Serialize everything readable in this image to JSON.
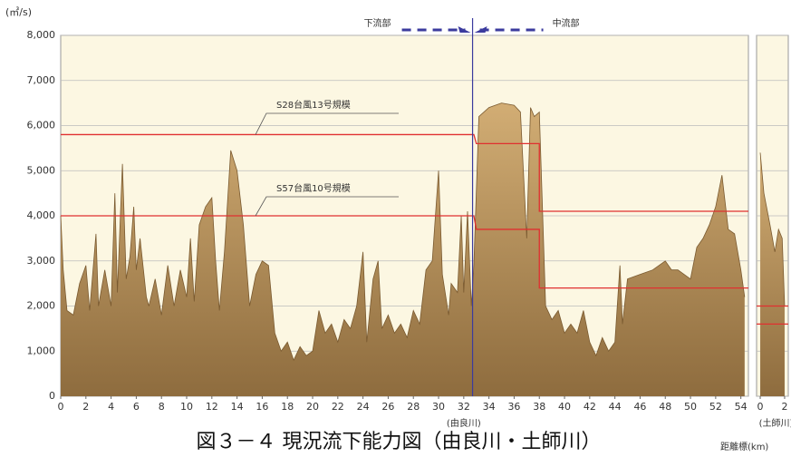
{
  "caption": "図３－４ 現況流下能力図（由良川・土師川）",
  "distance_label": "距離標(km)",
  "chart_data": [
    {
      "type": "area",
      "y_label": "(㎥/s)",
      "x_label": "(由良川)",
      "color": "#a8844c",
      "x": [
        0,
        0.2,
        0.5,
        1,
        1.5,
        2,
        2.3,
        2.8,
        3,
        3.5,
        4,
        4.3,
        4.5,
        4.9,
        5.2,
        5.5,
        5.8,
        6,
        6.3,
        6.8,
        7,
        7.5,
        8,
        8.5,
        9,
        9.5,
        10,
        10.3,
        10.6,
        11,
        11.5,
        12,
        12.3,
        12.6,
        13,
        13.5,
        14,
        14.5,
        15,
        15.5,
        16,
        16.5,
        17,
        17.5,
        18,
        18.5,
        19,
        19.5,
        20,
        20.5,
        21,
        21.5,
        22,
        22.5,
        23,
        23.5,
        24,
        24.3,
        24.8,
        25.2,
        25.5,
        26,
        26.5,
        27,
        27.5,
        28,
        28.5,
        29,
        29.5,
        30,
        30.3,
        30.8,
        31,
        31.5,
        31.8,
        32,
        32.3,
        32.6,
        32.8,
        33.2,
        34,
        35,
        36,
        36.5,
        37,
        37.3,
        37.6,
        38,
        38.5,
        39,
        39.5,
        40,
        40.5,
        41,
        41.5,
        42,
        42.5,
        43,
        43.5,
        44,
        44.4,
        44.6,
        45,
        46,
        47,
        48,
        48.5,
        49,
        50,
        50.5,
        51,
        51.5,
        52,
        52.5,
        53,
        53.5,
        54,
        54.3
      ],
      "values": [
        4000,
        2800,
        1900,
        1800,
        2500,
        2900,
        1900,
        3600,
        2000,
        2800,
        2000,
        4500,
        2300,
        5150,
        2600,
        3100,
        4200,
        2800,
        3500,
        2200,
        2000,
        2600,
        1800,
        2900,
        2000,
        2800,
        2200,
        3500,
        2100,
        3800,
        4200,
        4400,
        3000,
        1900,
        3200,
        5450,
        5000,
        3800,
        2000,
        2700,
        3000,
        2900,
        1400,
        1000,
        1200,
        800,
        1100,
        900,
        1000,
        1900,
        1400,
        1600,
        1200,
        1700,
        1500,
        2000,
        3200,
        1200,
        2600,
        3000,
        1500,
        1800,
        1400,
        1600,
        1300,
        1900,
        1600,
        2800,
        3000,
        5000,
        2700,
        1800,
        2500,
        2300,
        4000,
        2300,
        4100,
        2000,
        2900,
        6200,
        6400,
        6500,
        6450,
        6300,
        3500,
        6400,
        6200,
        6300,
        2000,
        1700,
        1900,
        1400,
        1600,
        1400,
        1900,
        1200,
        900,
        1300,
        1000,
        1200,
        2900,
        1600,
        2600,
        2700,
        2800,
        3000,
        2800,
        2800,
        2600,
        3300,
        3500,
        3800,
        4200,
        4900,
        3700,
        3600,
        2800,
        2200
      ],
      "lines": [
        {
          "name": "S28台風13号規模",
          "color": "#e03030",
          "x": [
            0,
            32.8,
            33,
            38,
            38,
            54.6
          ],
          "values": [
            5800,
            5800,
            5600,
            5600,
            4100,
            4100
          ]
        },
        {
          "name": "S57台風10号規模",
          "color": "#e03030",
          "x": [
            0,
            32.8,
            33,
            38,
            38,
            54.6
          ],
          "values": [
            4000,
            4000,
            3700,
            3700,
            2400,
            2400
          ]
        }
      ],
      "divider": {
        "x": 32.7,
        "left_label": "下流部",
        "right_label": "中流部",
        "color": "#3b3b9e"
      },
      "xlim": [
        0,
        54.6
      ],
      "ylim": [
        0,
        8000
      ],
      "xticks": [
        0,
        2,
        4,
        6,
        8,
        10,
        12,
        14,
        16,
        18,
        20,
        22,
        24,
        26,
        28,
        30,
        32,
        34,
        36,
        38,
        40,
        42,
        44,
        46,
        48,
        50,
        52,
        54
      ],
      "yticks": [
        0,
        {
          "value": 1000,
          "label": "1,000"
        },
        {
          "value": 2000,
          "label": "2,000"
        },
        {
          "value": 3000,
          "label": "3,000"
        },
        {
          "value": 4000,
          "label": "4,000"
        },
        {
          "value": 5000,
          "label": "5,000"
        },
        {
          "value": 6000,
          "label": "6,000"
        },
        {
          "value": 7000,
          "label": "7,000"
        },
        {
          "value": 8000,
          "label": "8,000"
        }
      ],
      "grid": true
    },
    {
      "type": "area",
      "x_label": "(土師川)",
      "color": "#a8844c",
      "x": [
        0,
        0.3,
        0.8,
        1.2,
        1.5,
        1.8,
        2
      ],
      "values": [
        5400,
        4500,
        3800,
        3200,
        3700,
        3500,
        2000
      ],
      "lines": [
        {
          "color": "#e03030",
          "x": [
            -0.3,
            2.3
          ],
          "values": [
            2000,
            2000
          ]
        },
        {
          "color": "#e03030",
          "x": [
            -0.3,
            2.3
          ],
          "values": [
            1600,
            1600
          ]
        }
      ],
      "xlim": [
        -0.3,
        2.3
      ],
      "ylim": [
        0,
        8000
      ],
      "xticks": [
        0,
        2
      ],
      "grid": true
    }
  ]
}
